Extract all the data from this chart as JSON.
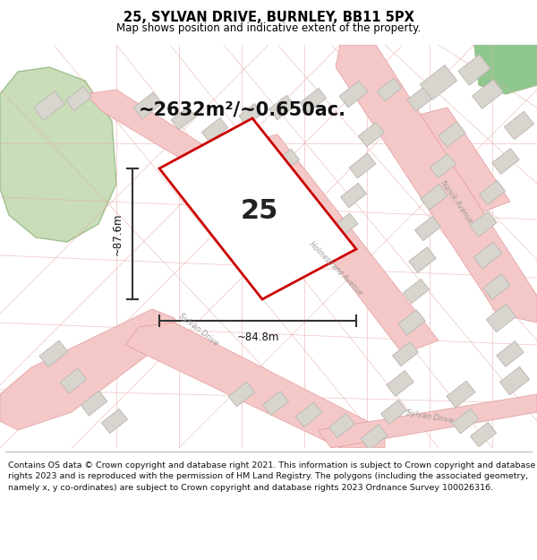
{
  "title_line1": "25, SYLVAN DRIVE, BURNLEY, BB11 5PX",
  "title_line2": "Map shows position and indicative extent of the property.",
  "footer_text": "Contains OS data © Crown copyright and database right 2021. This information is subject to Crown copyright and database rights 2023 and is reproduced with the permission of HM Land Registry. The polygons (including the associated geometry, namely x, y co-ordinates) are subject to Crown copyright and database rights 2023 Ordnance Survey 100026316.",
  "area_label": "~2632m²/~0.650ac.",
  "property_number": "25",
  "dim_height": "~87.6m",
  "dim_width": "~84.8m",
  "highlight_color": "#cc0000",
  "dim_color": "#333333",
  "building_fill": "#d8d4ce",
  "building_edge": "#c0bab4",
  "road_fill": "#f5c8c8",
  "road_edge": "#e09898",
  "green_fill": "#c8ddb8",
  "green_edge": "#a0c090",
  "green2_fill": "#8fc88f",
  "map_bg": "#f7f2ee"
}
